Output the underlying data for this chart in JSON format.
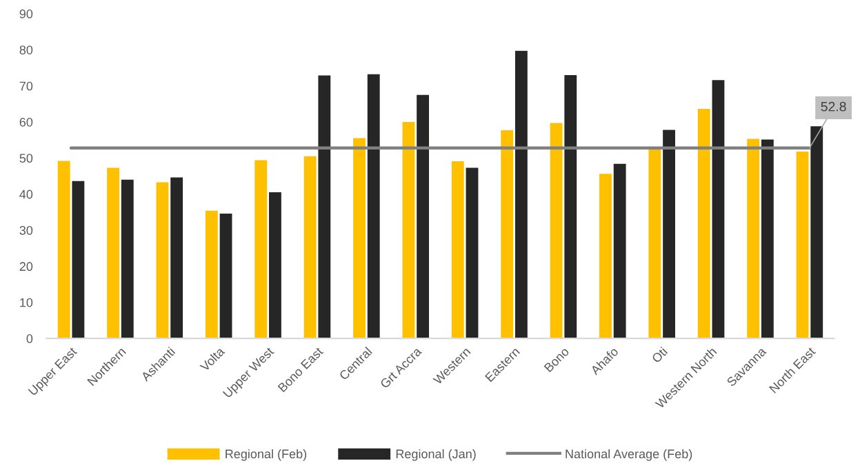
{
  "chart_data": {
    "type": "bar",
    "categories": [
      "Upper East",
      "Northern",
      "Ashanti",
      "Volta",
      "Upper West",
      "Bono East",
      "Central",
      "Grt Accra",
      "Western",
      "Eastern",
      "Bono",
      "Ahafo",
      "Oti",
      "Western North",
      "Savanna",
      "North East"
    ],
    "series": [
      {
        "name": "Regional (Feb)",
        "color": "#ffc000",
        "values": [
          49.2,
          47.3,
          43.3,
          35.4,
          49.4,
          50.5,
          55.5,
          60.0,
          49.1,
          57.7,
          59.7,
          45.6,
          52.6,
          63.6,
          55.3,
          51.8
        ]
      },
      {
        "name": "Regional (Jan)",
        "color": "#262626",
        "values": [
          43.6,
          44.0,
          44.6,
          34.6,
          40.5,
          72.9,
          73.2,
          67.5,
          47.3,
          79.7,
          73.0,
          48.4,
          57.8,
          71.6,
          55.1,
          58.8
        ]
      },
      {
        "name": "National Average (Feb)",
        "type": "line",
        "color": "#808080",
        "values": [
          52.8,
          52.8,
          52.8,
          52.8,
          52.8,
          52.8,
          52.8,
          52.8,
          52.8,
          52.8,
          52.8,
          52.8,
          52.8,
          52.8,
          52.8,
          52.8
        ],
        "value_labels": [
          null,
          null,
          null,
          null,
          null,
          null,
          null,
          null,
          null,
          null,
          null,
          null,
          null,
          null,
          null,
          "52.8"
        ]
      }
    ],
    "ylim": [
      0,
      90
    ],
    "yticks": [
      0,
      10,
      20,
      30,
      40,
      50,
      60,
      70,
      80,
      90
    ],
    "legend": "bottom"
  }
}
